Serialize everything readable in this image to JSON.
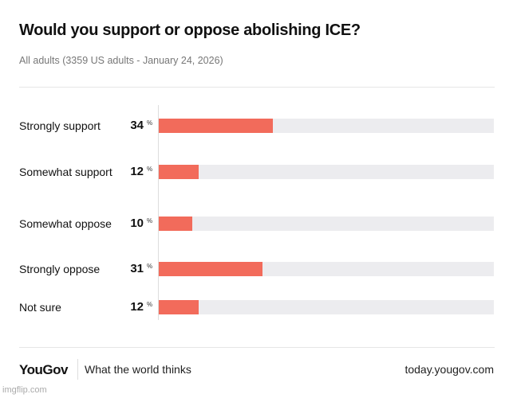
{
  "chart_data": {
    "type": "bar",
    "orientation": "horizontal",
    "title": "Would you support or oppose abolishing ICE?",
    "subtitle": "All adults (3359 US adults - January 24, 2026)",
    "categories": [
      "Strongly support",
      "Somewhat support",
      "Somewhat oppose",
      "Strongly oppose",
      "Not sure"
    ],
    "values": [
      34,
      12,
      10,
      31,
      12
    ],
    "unit": "%",
    "xlim": [
      0,
      100
    ],
    "grid": false,
    "bar_color": "#f26b5b",
    "track_color": "#ececef"
  },
  "footer": {
    "logo": "YouGov",
    "tagline": "What the world thinks",
    "url": "today.yougov.com"
  },
  "watermark": "imgflip.com"
}
